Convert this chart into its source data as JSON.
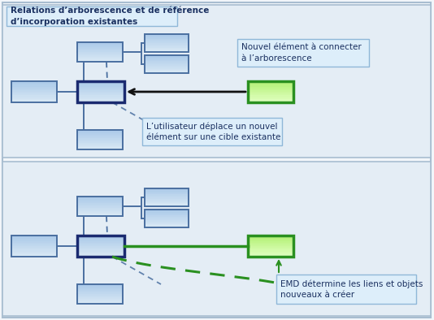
{
  "bg_color": "#f2f6fa",
  "border_color": "#a8bdd0",
  "panel_bg": "#e4edf5",
  "box_fill": "#c8daea",
  "box_fill2": "#b8cfe8",
  "box_edge": "#4a6fa0",
  "box_dark_edge": "#1a2a70",
  "green_fill": "#d0f0a0",
  "green_fill2": "#e8ffc8",
  "green_edge": "#2a9020",
  "label_bg": "#ddeefa",
  "label_edge": "#90b8d8",
  "title_text": "Relations d’arborescence et de référence\nd’incorporation existantes",
  "label1_text": "Nouvel élément à connecter\nà l’arborescence",
  "label2_text": "L’utilisateur déplace un nouvel\nélément sur une cible existante",
  "label3_text": "EMD détermine les liens et objets\nnouveaux à créer",
  "text_color": "#1a3060",
  "line_color": "#4a6fa0",
  "arrow_color": "#111111"
}
